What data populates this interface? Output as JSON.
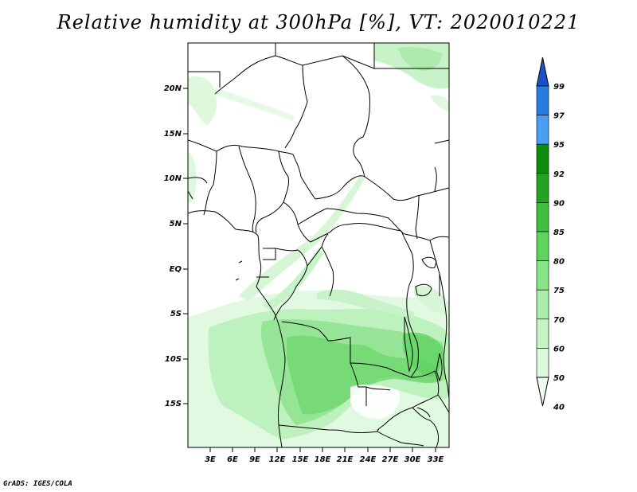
{
  "title": "Relative humidity at 300hPa [%], VT: 2020010221",
  "credit": "GrADS: IGES/COLA",
  "lat_labels": [
    "20N",
    "15N",
    "10N",
    "5N",
    "EQ",
    "5S",
    "10S",
    "15S"
  ],
  "lon_labels": [
    "3E",
    "6E",
    "9E",
    "12E",
    "15E",
    "18E",
    "21E",
    "24E",
    "27E",
    "30E",
    "33E"
  ],
  "colorbar": {
    "labels": [
      "99",
      "97",
      "95",
      "92",
      "90",
      "85",
      "80",
      "75",
      "70",
      "60",
      "50",
      "40"
    ],
    "colors": [
      "#1a52c8",
      "#2a7ae0",
      "#4a9df0",
      "#0e8c0e",
      "#22a322",
      "#3ebf3e",
      "#5ed45e",
      "#86e386",
      "#a8eea8",
      "#c4f4c4",
      "#dcf9dc",
      "#f0fdf0"
    ]
  },
  "map": {
    "region": "Central Africa",
    "field": "relative humidity",
    "level_hPa": 300
  }
}
